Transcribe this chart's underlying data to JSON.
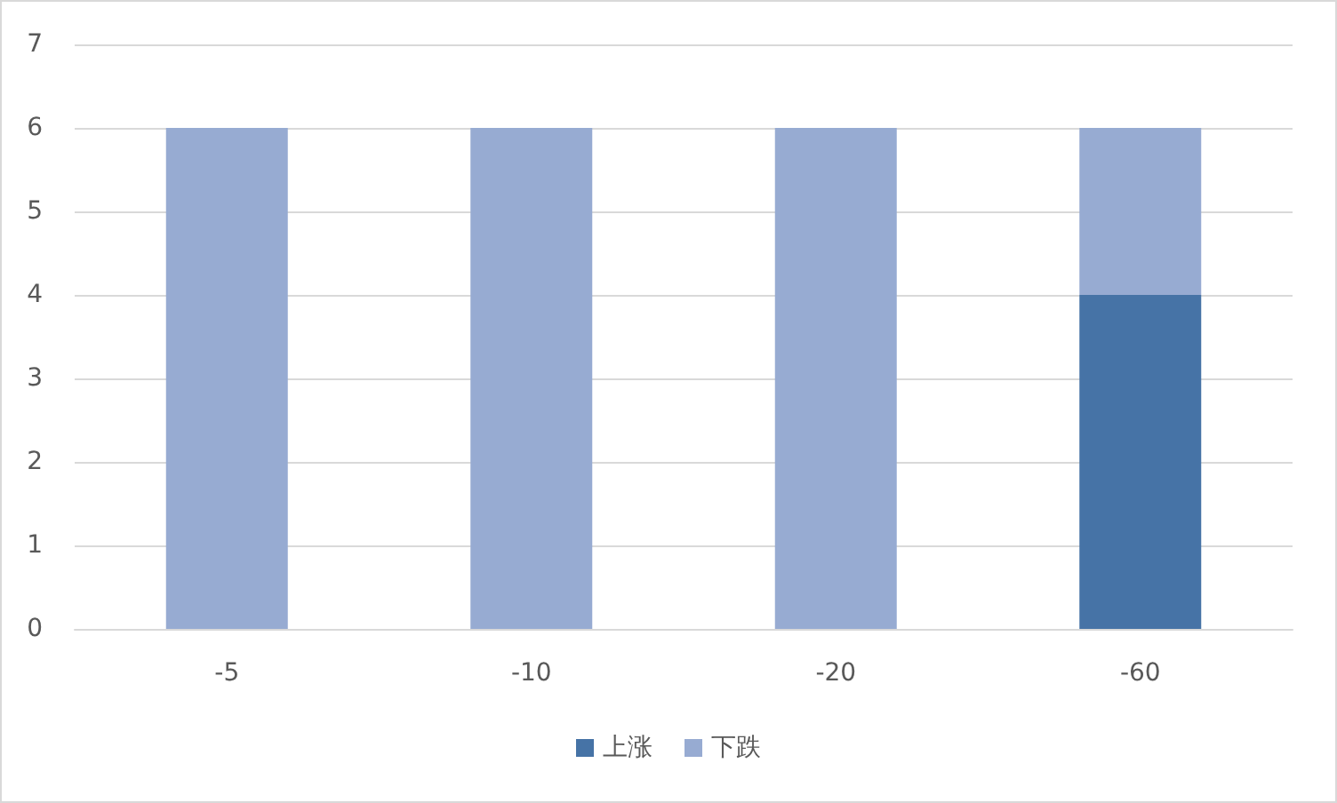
{
  "chart_data": {
    "type": "bar",
    "stacked": true,
    "categories": [
      "-5",
      "-10",
      "-20",
      "-60"
    ],
    "series": [
      {
        "name": "上涨",
        "color": "#4673a6",
        "values": [
          0,
          0,
          0,
          4
        ]
      },
      {
        "name": "下跌",
        "color": "#97abd2",
        "values": [
          6,
          6,
          6,
          2
        ]
      }
    ],
    "ylim": [
      0,
      7
    ],
    "yticks": [
      0,
      1,
      2,
      3,
      4,
      5,
      6,
      7
    ],
    "grid": "y",
    "legend": "bottom"
  }
}
